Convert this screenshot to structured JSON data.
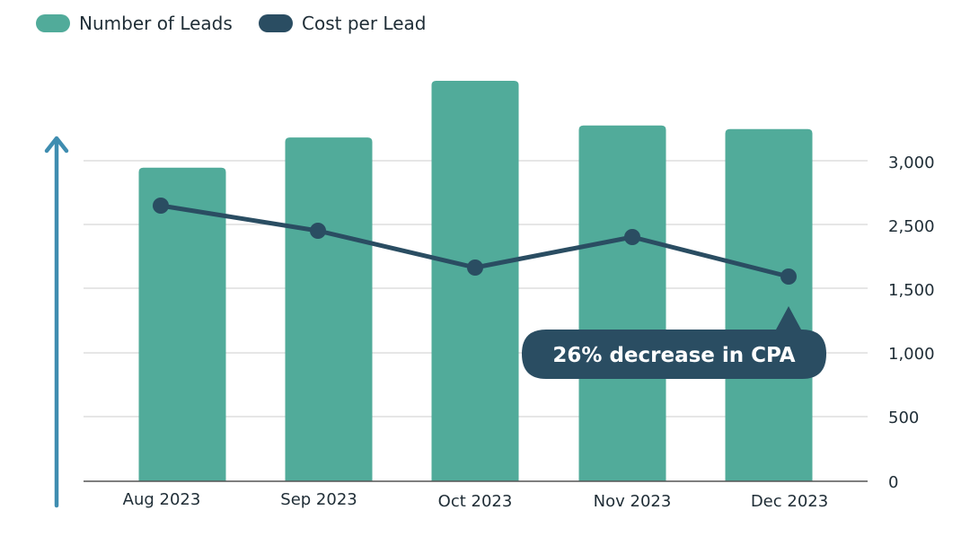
{
  "chart_data": {
    "type": "bar",
    "categories": [
      "Aug 2023",
      "Sep 2023",
      "Oct 2023",
      "Nov 2023",
      "Dec 2023"
    ],
    "series": [
      {
        "name": "Number of Leads",
        "type": "bar",
        "axis": "hidden-left",
        "values": [
          260,
          285,
          332,
          295,
          292
        ]
      },
      {
        "name": "Cost per Lead",
        "type": "line",
        "axis": "right",
        "values": [
          2650,
          2450,
          1670,
          2400,
          1600
        ]
      }
    ],
    "y_right": {
      "ticks": [
        "0",
        "500",
        "1,000",
        "1,500",
        "2,500",
        "3,000"
      ],
      "tick_values": [
        0,
        500,
        1000,
        1500,
        2500,
        3000
      ],
      "ylim": [
        0,
        3000
      ]
    },
    "y_left_hidden_ylim": [
      0,
      250
    ],
    "grid": true,
    "legend_placement": "top-left",
    "annotation": "26% decrease in CPA",
    "colors": {
      "bar": "#51ab9a",
      "line": "#2a4d62",
      "arrow": "#3f8db0",
      "grid": "#dddddd",
      "callout": "#2a4d62"
    }
  }
}
